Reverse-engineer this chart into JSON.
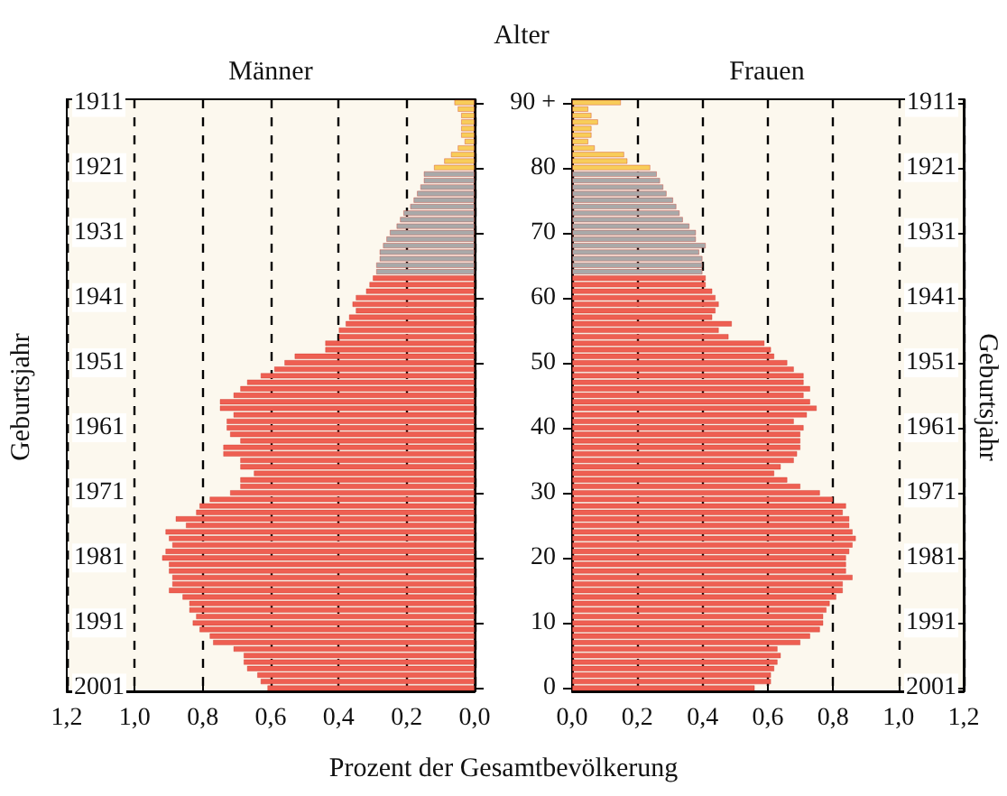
{
  "chart_data": [
    {
      "type": "bar",
      "orientation": "horizontal",
      "title": "Männer",
      "ylabel": "Geburtsjahr",
      "xlabel": "Prozent der Gesamtbevölkerung",
      "grid": "x",
      "categories": [
        "1911",
        null,
        null,
        null,
        null,
        null,
        null,
        null,
        null,
        null,
        "1921",
        null,
        null,
        null,
        null,
        null,
        null,
        null,
        null,
        null,
        "1931",
        null,
        null,
        null,
        null,
        null,
        null,
        null,
        null,
        null,
        "1941",
        null,
        null,
        null,
        null,
        null,
        null,
        null,
        null,
        null,
        "1951",
        null,
        null,
        null,
        null,
        null,
        null,
        null,
        null,
        null,
        "1961",
        null,
        null,
        null,
        null,
        null,
        null,
        null,
        null,
        null,
        "1971",
        null,
        null,
        null,
        null,
        null,
        null,
        null,
        null,
        null,
        "1981",
        null,
        null,
        null,
        null,
        null,
        null,
        null,
        null,
        null,
        "1991",
        null,
        null,
        null,
        null,
        null,
        null,
        null,
        null,
        null,
        "2001"
      ],
      "values": [
        0.06,
        0.05,
        0.04,
        0.04,
        0.04,
        0.04,
        0.03,
        0.05,
        0.07,
        0.09,
        0.12,
        0.15,
        0.15,
        0.16,
        0.17,
        0.18,
        0.19,
        0.21,
        0.22,
        0.23,
        0.25,
        0.26,
        0.27,
        0.28,
        0.28,
        0.29,
        0.29,
        0.3,
        0.31,
        0.32,
        0.35,
        0.36,
        0.35,
        0.37,
        0.38,
        0.4,
        0.4,
        0.44,
        0.44,
        0.53,
        0.56,
        0.59,
        0.63,
        0.67,
        0.69,
        0.71,
        0.75,
        0.75,
        0.71,
        0.73,
        0.73,
        0.72,
        0.69,
        0.74,
        0.74,
        0.69,
        0.69,
        0.65,
        0.69,
        0.69,
        0.72,
        0.78,
        0.81,
        0.82,
        0.88,
        0.85,
        0.91,
        0.9,
        0.89,
        0.91,
        0.92,
        0.9,
        0.9,
        0.89,
        0.89,
        0.9,
        0.86,
        0.84,
        0.84,
        0.82,
        0.83,
        0.81,
        0.78,
        0.77,
        0.71,
        0.68,
        0.68,
        0.67,
        0.64,
        0.63,
        0.61
      ],
      "colors": [
        "#f8cd5a",
        "#f8cd5a",
        "#f8cd5a",
        "#f8cd5a",
        "#f8cd5a",
        "#f8cd5a",
        "#f8cd5a",
        "#f8cd5a",
        "#f8cd5a",
        "#f8cd5a",
        "#f8cd5a",
        "#a9a9a9",
        "#a9a9a9",
        "#a9a9a9",
        "#a9a9a9",
        "#a9a9a9",
        "#a9a9a9",
        "#a9a9a9",
        "#a9a9a9",
        "#a9a9a9",
        "#a9a9a9",
        "#a9a9a9",
        "#a9a9a9",
        "#a9a9a9",
        "#a9a9a9",
        "#a9a9a9",
        "#a9a9a9",
        "#ee5f52",
        "#ee5f52",
        "#ee5f52",
        "#ee5f52",
        "#ee5f52",
        "#ee5f52",
        "#ee5f52",
        "#ee5f52",
        "#ee5f52",
        "#ee5f52",
        "#ee5f52",
        "#ee5f52",
        "#ee5f52",
        "#ee5f52",
        "#ee5f52",
        "#ee5f52",
        "#ee5f52",
        "#ee5f52",
        "#ee5f52",
        "#ee5f52",
        "#ee5f52",
        "#ee5f52",
        "#ee5f52",
        "#ee5f52",
        "#ee5f52",
        "#ee5f52",
        "#ee5f52",
        "#ee5f52",
        "#ee5f52",
        "#ee5f52",
        "#ee5f52",
        "#ee5f52",
        "#ee5f52",
        "#ee5f52",
        "#ee5f52",
        "#ee5f52",
        "#ee5f52",
        "#ee5f52",
        "#ee5f52",
        "#ee5f52",
        "#ee5f52",
        "#ee5f52",
        "#ee5f52",
        "#ee5f52",
        "#ee5f52",
        "#ee5f52",
        "#ee5f52",
        "#ee5f52",
        "#ee5f52",
        "#ee5f52",
        "#ee5f52",
        "#ee5f52",
        "#ee5f52",
        "#ee5f52",
        "#ee5f52",
        "#ee5f52",
        "#ee5f52",
        "#ee5f52",
        "#ee5f52",
        "#ee5f52",
        "#ee5f52",
        "#ee5f52",
        "#ee5f52",
        "#ee5f52"
      ],
      "xlim": [
        1.2,
        0
      ],
      "xticks": [
        {
          "value": 1.2,
          "label": "1,2"
        },
        {
          "value": 1,
          "label": "1,0"
        },
        {
          "value": 0.8,
          "label": "0,8"
        },
        {
          "value": 0.6,
          "label": "0,6"
        },
        {
          "value": 0.4,
          "label": "0,4"
        },
        {
          "value": 0.2,
          "label": "0,2"
        },
        {
          "value": 0,
          "label": "0,0"
        }
      ]
    },
    {
      "type": "bar",
      "orientation": "horizontal",
      "title": "Frauen",
      "ylabel": "Alter",
      "y2label": "Geburtsjahr",
      "grid": "x",
      "categories": [
        "90 +",
        null,
        null,
        null,
        null,
        null,
        null,
        null,
        null,
        null,
        "80",
        null,
        null,
        null,
        null,
        null,
        null,
        null,
        null,
        null,
        "70",
        null,
        null,
        null,
        null,
        null,
        null,
        null,
        null,
        null,
        "60",
        null,
        null,
        null,
        null,
        null,
        null,
        null,
        null,
        null,
        "50",
        null,
        null,
        null,
        null,
        null,
        null,
        null,
        null,
        null,
        "40",
        null,
        null,
        null,
        null,
        null,
        null,
        null,
        null,
        null,
        "30",
        null,
        null,
        null,
        null,
        null,
        null,
        null,
        null,
        null,
        "20",
        null,
        null,
        null,
        null,
        null,
        null,
        null,
        null,
        null,
        "10",
        null,
        null,
        null,
        null,
        null,
        null,
        null,
        null,
        null,
        "0"
      ],
      "values": [
        0.15,
        0.05,
        0.06,
        0.08,
        0.06,
        0.06,
        0.05,
        0.07,
        0.16,
        0.17,
        0.24,
        0.26,
        0.27,
        0.28,
        0.29,
        0.31,
        0.32,
        0.33,
        0.34,
        0.36,
        0.38,
        0.38,
        0.41,
        0.39,
        0.4,
        0.4,
        0.4,
        0.41,
        0.41,
        0.43,
        0.44,
        0.45,
        0.44,
        0.43,
        0.49,
        0.45,
        0.48,
        0.59,
        0.61,
        0.62,
        0.66,
        0.68,
        0.71,
        0.71,
        0.73,
        0.71,
        0.73,
        0.75,
        0.72,
        0.68,
        0.71,
        0.7,
        0.7,
        0.7,
        0.69,
        0.68,
        0.64,
        0.62,
        0.66,
        0.7,
        0.76,
        0.8,
        0.84,
        0.83,
        0.85,
        0.85,
        0.86,
        0.87,
        0.86,
        0.85,
        0.84,
        0.84,
        0.84,
        0.86,
        0.83,
        0.83,
        0.81,
        0.79,
        0.78,
        0.77,
        0.77,
        0.76,
        0.73,
        0.7,
        0.63,
        0.64,
        0.63,
        0.62,
        0.61,
        0.61,
        0.56
      ],
      "colors": [
        "#f8cd5a",
        "#f8cd5a",
        "#f8cd5a",
        "#f8cd5a",
        "#f8cd5a",
        "#f8cd5a",
        "#f8cd5a",
        "#f8cd5a",
        "#f8cd5a",
        "#f8cd5a",
        "#f8cd5a",
        "#a9a9a9",
        "#a9a9a9",
        "#a9a9a9",
        "#a9a9a9",
        "#a9a9a9",
        "#a9a9a9",
        "#a9a9a9",
        "#a9a9a9",
        "#a9a9a9",
        "#a9a9a9",
        "#a9a9a9",
        "#a9a9a9",
        "#a9a9a9",
        "#a9a9a9",
        "#a9a9a9",
        "#a9a9a9",
        "#ee5f52",
        "#ee5f52",
        "#ee5f52",
        "#ee5f52",
        "#ee5f52",
        "#ee5f52",
        "#ee5f52",
        "#ee5f52",
        "#ee5f52",
        "#ee5f52",
        "#ee5f52",
        "#ee5f52",
        "#ee5f52",
        "#ee5f52",
        "#ee5f52",
        "#ee5f52",
        "#ee5f52",
        "#ee5f52",
        "#ee5f52",
        "#ee5f52",
        "#ee5f52",
        "#ee5f52",
        "#ee5f52",
        "#ee5f52",
        "#ee5f52",
        "#ee5f52",
        "#ee5f52",
        "#ee5f52",
        "#ee5f52",
        "#ee5f52",
        "#ee5f52",
        "#ee5f52",
        "#ee5f52",
        "#ee5f52",
        "#ee5f52",
        "#ee5f52",
        "#ee5f52",
        "#ee5f52",
        "#ee5f52",
        "#ee5f52",
        "#ee5f52",
        "#ee5f52",
        "#ee5f52",
        "#ee5f52",
        "#ee5f52",
        "#ee5f52",
        "#ee5f52",
        "#ee5f52",
        "#ee5f52",
        "#ee5f52",
        "#ee5f52",
        "#ee5f52",
        "#ee5f52",
        "#ee5f52",
        "#ee5f52",
        "#ee5f52",
        "#ee5f52",
        "#ee5f52",
        "#ee5f52",
        "#ee5f52",
        "#ee5f52",
        "#ee5f52",
        "#ee5f52",
        "#ee5f52"
      ],
      "xlim": [
        0,
        1.2
      ],
      "xticks": [
        {
          "value": 0,
          "label": "0,0"
        },
        {
          "value": 0.2,
          "label": "0,2"
        },
        {
          "value": 0.4,
          "label": "0,4"
        },
        {
          "value": 0.6,
          "label": "0,6"
        },
        {
          "value": 0.8,
          "label": "0,8"
        },
        {
          "value": 1,
          "label": "1,0"
        },
        {
          "value": 1.2,
          "label": "1,2"
        }
      ],
      "y2lim": [
        2001.5,
        1910.5
      ],
      "y2ticks": [
        1911,
        1921,
        1931,
        1941,
        1951,
        1961,
        1971,
        1981,
        1991,
        2001
      ]
    }
  ]
}
